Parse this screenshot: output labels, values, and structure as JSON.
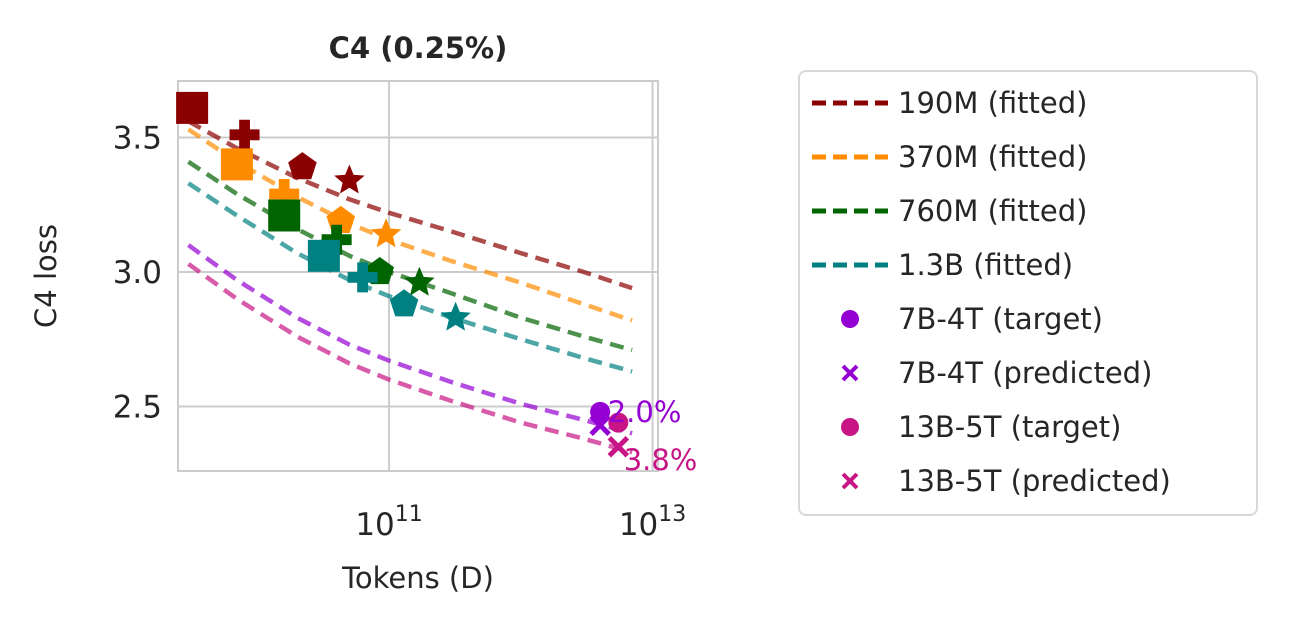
{
  "chart_data": {
    "type": "line",
    "title": "C4 (0.25%)",
    "xlabel": "Tokens (D)",
    "ylabel": "C4 loss",
    "x_scale": "log",
    "xlim": [
      2500000000.0,
      11000000000000.0
    ],
    "ylim": [
      2.26,
      3.71
    ],
    "x_ticks": [
      {
        "value": 100000000000.0,
        "base": "10",
        "exp": "11"
      },
      {
        "value": 10000000000000.0,
        "base": "10",
        "exp": "13"
      }
    ],
    "y_ticks": [
      {
        "value": 2.5,
        "label": "2.5"
      },
      {
        "value": 3.0,
        "label": "3.0"
      },
      {
        "value": 3.5,
        "label": "3.5"
      }
    ],
    "grid": true,
    "legend_position": "outside-right",
    "fitted_series": [
      {
        "name": "190M (fitted)",
        "color": "#8b0000",
        "x": [
          3000000000.0,
          7000000000.0,
          20000000000.0,
          50000000000.0,
          100000000000.0,
          300000000000.0,
          1000000000000.0,
          3000000000000.0,
          7000000000000.0
        ],
        "y": [
          3.56,
          3.46,
          3.35,
          3.27,
          3.22,
          3.15,
          3.07,
          3.0,
          2.94
        ]
      },
      {
        "name": "370M (fitted)",
        "color": "#ff8c00",
        "x": [
          3000000000.0,
          7000000000.0,
          20000000000.0,
          50000000000.0,
          100000000000.0,
          300000000000.0,
          1000000000000.0,
          3000000000000.0,
          7000000000000.0
        ],
        "y": [
          3.53,
          3.41,
          3.28,
          3.18,
          3.12,
          3.04,
          2.96,
          2.88,
          2.82
        ]
      },
      {
        "name": "760M (fitted)",
        "color": "#006400",
        "x": [
          3000000000.0,
          7000000000.0,
          20000000000.0,
          50000000000.0,
          100000000000.0,
          300000000000.0,
          1000000000000.0,
          3000000000000.0,
          7000000000000.0
        ],
        "y": [
          3.41,
          3.29,
          3.16,
          3.06,
          3.0,
          2.92,
          2.83,
          2.76,
          2.71
        ]
      },
      {
        "name": "1.3B (fitted)",
        "color": "#008080",
        "x": [
          3000000000.0,
          7000000000.0,
          20000000000.0,
          50000000000.0,
          100000000000.0,
          300000000000.0,
          1000000000000.0,
          3000000000000.0,
          7000000000000.0
        ],
        "y": [
          3.33,
          3.21,
          3.07,
          2.97,
          2.91,
          2.83,
          2.75,
          2.68,
          2.63
        ]
      },
      {
        "color": "#9400d3",
        "x": [
          3000000000.0,
          7000000000.0,
          20000000000.0,
          50000000000.0,
          100000000000.0,
          300000000000.0,
          1000000000000.0,
          3000000000000.0,
          7000000000000.0
        ],
        "y": [
          3.1,
          2.97,
          2.83,
          2.73,
          2.67,
          2.59,
          2.51,
          2.45,
          2.4
        ]
      },
      {
        "color": "#c71585",
        "x": [
          3000000000.0,
          7000000000.0,
          20000000000.0,
          50000000000.0,
          100000000000.0,
          300000000000.0,
          1000000000000.0,
          3000000000000.0,
          7000000000000.0
        ],
        "y": [
          3.03,
          2.9,
          2.76,
          2.66,
          2.6,
          2.52,
          2.44,
          2.38,
          2.33
        ]
      }
    ],
    "observed_points": [
      {
        "color": "#8b0000",
        "shape": "square",
        "x": 3200000000.0,
        "y": 3.61
      },
      {
        "color": "#8b0000",
        "shape": "plus",
        "x": 8000000000.0,
        "y": 3.51
      },
      {
        "color": "#8b0000",
        "shape": "pentagon",
        "x": 22000000000.0,
        "y": 3.39
      },
      {
        "color": "#8b0000",
        "shape": "star",
        "x": 50000000000.0,
        "y": 3.34
      },
      {
        "color": "#ff8c00",
        "shape": "square",
        "x": 7000000000.0,
        "y": 3.4
      },
      {
        "color": "#ff8c00",
        "shape": "plus",
        "x": 16000000000.0,
        "y": 3.29
      },
      {
        "color": "#ff8c00",
        "shape": "pentagon",
        "x": 43000000000.0,
        "y": 3.19
      },
      {
        "color": "#ff8c00",
        "shape": "star",
        "x": 95000000000.0,
        "y": 3.14
      },
      {
        "color": "#006400",
        "shape": "square",
        "x": 16000000000.0,
        "y": 3.21
      },
      {
        "color": "#006400",
        "shape": "plus",
        "x": 40000000000.0,
        "y": 3.12
      },
      {
        "color": "#006400",
        "shape": "pentagon",
        "x": 85000000000.0,
        "y": 3.0
      },
      {
        "color": "#006400",
        "shape": "star",
        "x": 170000000000.0,
        "y": 2.96
      },
      {
        "color": "#008080",
        "shape": "square",
        "x": 32000000000.0,
        "y": 3.06
      },
      {
        "color": "#008080",
        "shape": "plus",
        "x": 63000000000.0,
        "y": 2.98
      },
      {
        "color": "#008080",
        "shape": "pentagon",
        "x": 130000000000.0,
        "y": 2.88
      },
      {
        "color": "#008080",
        "shape": "star",
        "x": 320000000000.0,
        "y": 2.83
      }
    ],
    "targets": [
      {
        "name": "7B-4T (target)",
        "color": "#9400d3",
        "shape": "circle",
        "x": 4000000000000.0,
        "y": 2.48
      },
      {
        "name": "7B-4T (predicted)",
        "color": "#9400d3",
        "shape": "x",
        "x": 4000000000000.0,
        "y": 2.43
      },
      {
        "name": "13B-5T (target)",
        "color": "#c71585",
        "shape": "circle",
        "x": 5500000000000.0,
        "y": 2.44
      },
      {
        "name": "13B-5T (predicted)",
        "color": "#c71585",
        "shape": "x",
        "x": 5500000000000.0,
        "y": 2.35
      }
    ],
    "annotations": [
      {
        "text": "2.0%",
        "color": "#9400d3",
        "x": 8700000000000.0,
        "y": 2.48
      },
      {
        "text": "3.8%",
        "color": "#c71585",
        "x": 11500000000000.0,
        "y": 2.3
      }
    ]
  }
}
